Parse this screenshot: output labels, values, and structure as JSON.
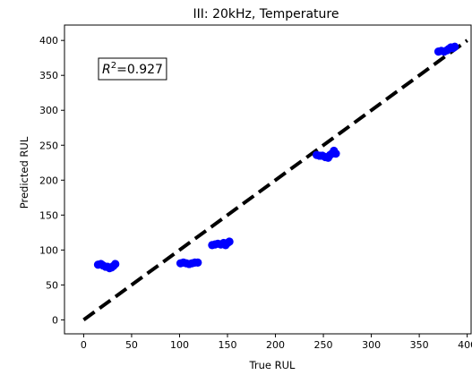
{
  "chart_data": {
    "type": "scatter",
    "title": "III: 20kHz, Temperature",
    "xlabel": "True RUL",
    "ylabel": "Predicted RUL",
    "xlim": [
      -20,
      405
    ],
    "ylim": [
      -20,
      422
    ],
    "xticks": [
      0,
      50,
      100,
      150,
      200,
      250,
      300,
      350,
      400
    ],
    "yticks": [
      0,
      50,
      100,
      150,
      200,
      250,
      300,
      350,
      400
    ],
    "grid": false,
    "annotation": {
      "text_prefix": "R",
      "superscript": "2",
      "text_suffix": "=0.927",
      "position": "top-left"
    },
    "reference_line": {
      "style": "dashed",
      "color": "#000000",
      "x": [
        0,
        400
      ],
      "y": [
        0,
        400
      ]
    },
    "series": [
      {
        "marker_color": "#0000ff",
        "points": [
          [
            15,
            79
          ],
          [
            18,
            80
          ],
          [
            20,
            78
          ],
          [
            23,
            76
          ],
          [
            25,
            76
          ],
          [
            27,
            74
          ],
          [
            29,
            75
          ],
          [
            31,
            77
          ],
          [
            33,
            80
          ],
          [
            101,
            81
          ],
          [
            104,
            82
          ],
          [
            107,
            81
          ],
          [
            110,
            80
          ],
          [
            113,
            81
          ],
          [
            116,
            82
          ],
          [
            119,
            82
          ],
          [
            134,
            107
          ],
          [
            137,
            108
          ],
          [
            140,
            109
          ],
          [
            143,
            108
          ],
          [
            146,
            110
          ],
          [
            148,
            107
          ],
          [
            150,
            110
          ],
          [
            152,
            112
          ],
          [
            243,
            236
          ],
          [
            246,
            235
          ],
          [
            249,
            235
          ],
          [
            252,
            233
          ],
          [
            255,
            232
          ],
          [
            257,
            236
          ],
          [
            259,
            238
          ],
          [
            261,
            242
          ],
          [
            263,
            238
          ],
          [
            370,
            384
          ],
          [
            373,
            385
          ],
          [
            376,
            384
          ],
          [
            379,
            386
          ],
          [
            381,
            388
          ],
          [
            383,
            390
          ],
          [
            385,
            389
          ],
          [
            387,
            391
          ]
        ]
      }
    ]
  }
}
